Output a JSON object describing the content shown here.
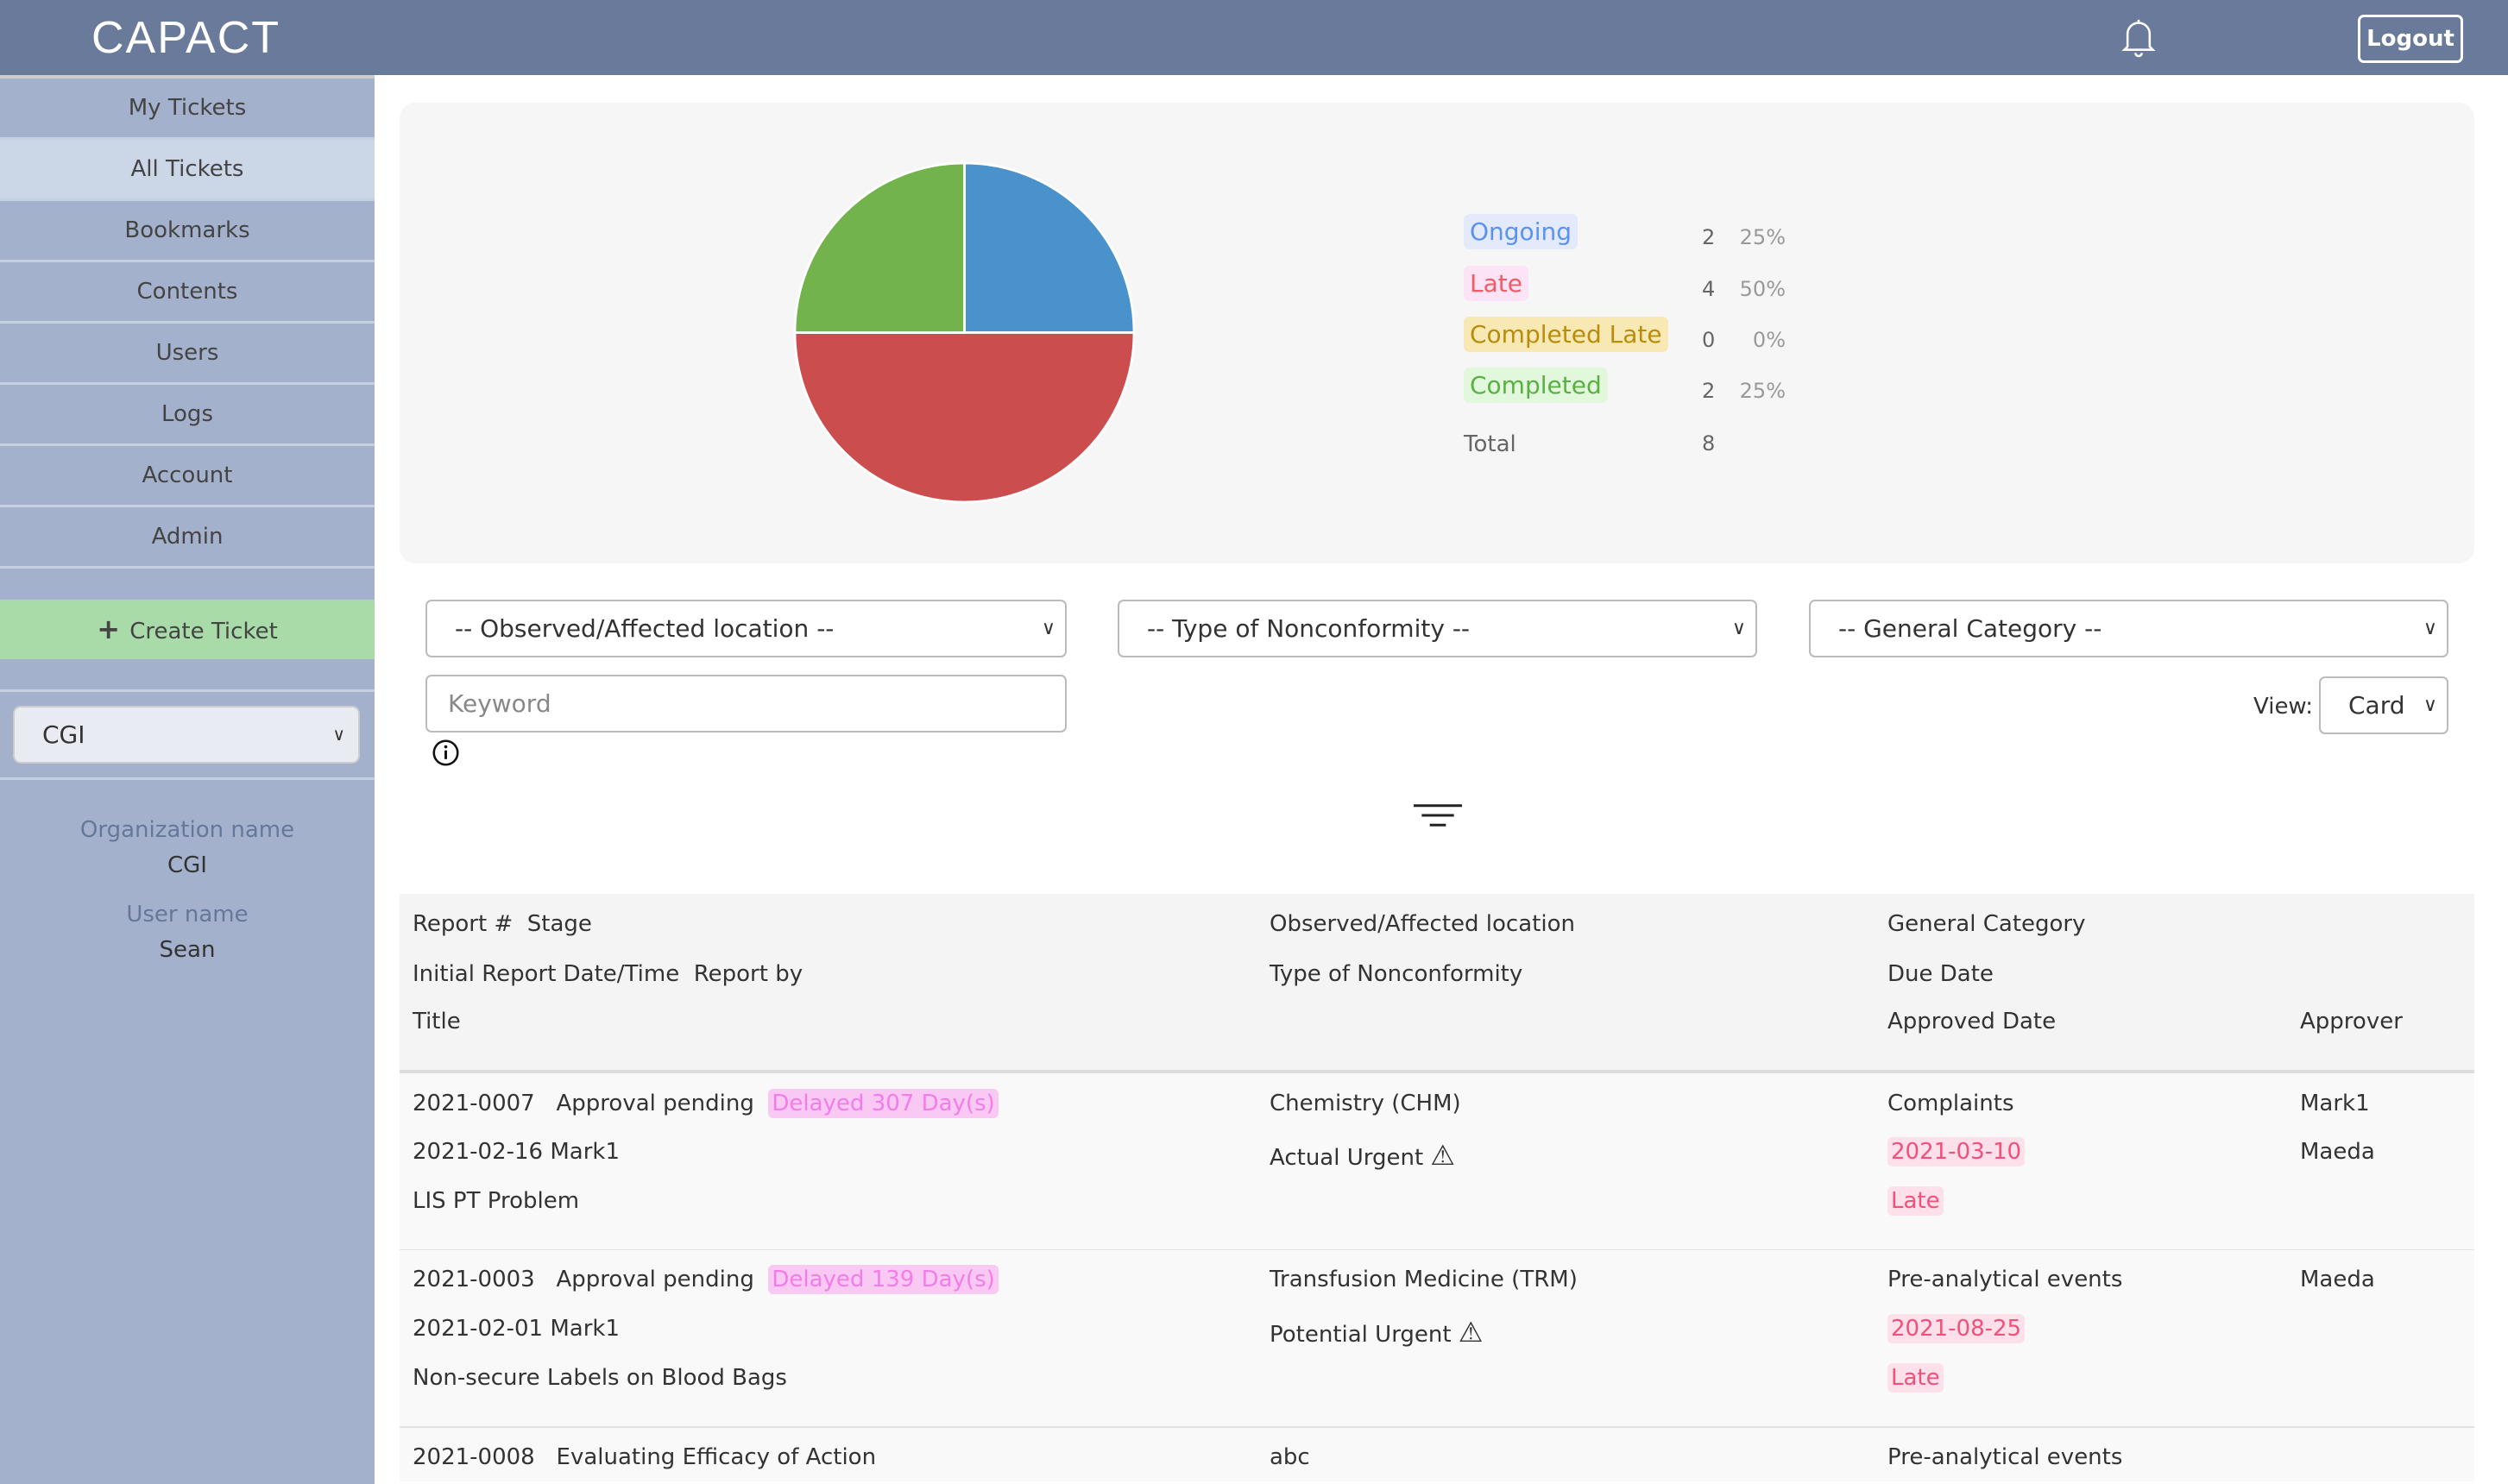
{
  "header": {
    "logo": "CAPACT",
    "logout_label": "Logout"
  },
  "sidebar": {
    "items": [
      {
        "label": "My Tickets"
      },
      {
        "label": "All Tickets"
      },
      {
        "label": "Bookmarks"
      },
      {
        "label": "Contents"
      },
      {
        "label": "Users"
      },
      {
        "label": "Logs"
      },
      {
        "label": "Account"
      },
      {
        "label": "Admin"
      }
    ],
    "create_label": "Create Ticket",
    "org_select": "CGI",
    "org_name_label": "Organization name",
    "org_name": "CGI",
    "user_name_label": "User name",
    "user_name": "Sean"
  },
  "colors": {
    "ongoing": "#4a92cc",
    "late": "#cc4d4d",
    "completed": "#72b34b",
    "header": "#6a7a9b",
    "sidebar": "#a3b1cc"
  },
  "chart_data": {
    "type": "pie",
    "categories": [
      "Ongoing",
      "Late",
      "Completed Late",
      "Completed"
    ],
    "values": [
      2,
      4,
      0,
      2
    ],
    "percents": [
      "25%",
      "50%",
      "0%",
      "25%"
    ],
    "total_label": "Total",
    "total": 8
  },
  "filters": {
    "location": "-- Observed/Affected location --",
    "type": "-- Type of Nonconformity --",
    "category": "-- General Category --",
    "keyword_placeholder": "Keyword",
    "view_label": "View:",
    "view_value": "Card"
  },
  "table": {
    "headers": {
      "report": "Report #",
      "stage": "Stage",
      "location": "Observed/Affected location",
      "category": "General Category",
      "initial": "Initial Report Date/Time",
      "report_by": "Report by",
      "type": "Type of Nonconformity",
      "due": "Due Date",
      "title": "Title",
      "approved": "Approved Date",
      "approver": "Approver"
    },
    "rows": [
      {
        "num": "2021-0007",
        "stage": "Approval pending",
        "delay": "Delayed 307 Day(s)",
        "location": "Chemistry (CHM)",
        "category": "Complaints",
        "approver1": "Mark1",
        "date": "2021-02-16 Mark1",
        "type": "Actual Urgent",
        "due": "2021-03-10",
        "approver2": "Maeda",
        "title": "LIS PT Problem",
        "status": "Late"
      },
      {
        "num": "2021-0003",
        "stage": "Approval pending",
        "delay": "Delayed 139 Day(s)",
        "location": "Transfusion Medicine (TRM)",
        "category": "Pre-analytical events",
        "approver1": "Maeda",
        "date": "2021-02-01 Mark1",
        "type": "Potential Urgent",
        "due": "2021-08-25",
        "approver2": "",
        "title": "Non-secure Labels on Blood Bags",
        "status": "Late"
      },
      {
        "num": "2021-0008",
        "stage": "Evaluating Efficacy of Action",
        "location": "abc",
        "category": "Pre-analytical events"
      }
    ]
  }
}
